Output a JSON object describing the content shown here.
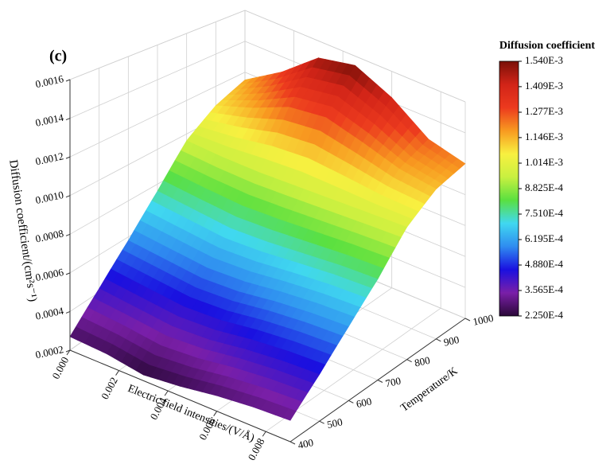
{
  "chart_data": {
    "type": "surface",
    "title": "(c)",
    "x_label": "Electric field intensities/(V/Å)",
    "y_label": "Temperature/K",
    "z_label": "Diffusion coefficient/(cm²s⁻¹)",
    "x": [
      0,
      0.0015,
      0.003,
      0.0045,
      0.006,
      0.0075,
      0.009
    ],
    "y": [
      400,
      500,
      600,
      700,
      800,
      900,
      1000
    ],
    "z": [
      [
        0.00027,
        0.00026,
        0.00023,
        0.00025,
        0.00028,
        0.0003,
        0.00031
      ],
      [
        0.00042,
        0.0004,
        0.00038,
        0.00039,
        0.00042,
        0.00044,
        0.00045
      ],
      [
        0.00058,
        0.00056,
        0.00054,
        0.00055,
        0.00058,
        0.0006,
        0.00061
      ],
      [
        0.00076,
        0.00074,
        0.00072,
        0.00073,
        0.00075,
        0.00077,
        0.00078
      ],
      [
        0.00096,
        0.00095,
        0.00095,
        0.00096,
        0.00097,
        0.00098,
        0.00099
      ],
      [
        0.00108,
        0.00116,
        0.00126,
        0.00129,
        0.00123,
        0.00116,
        0.00113
      ],
      [
        0.00115,
        0.0013,
        0.00149,
        0.00154,
        0.00143,
        0.00126,
        0.0012
      ]
    ],
    "xlim": [
      0,
      0.009
    ],
    "xticks": [
      {
        "value": 0,
        "label": "0.000"
      },
      0.002,
      0.004,
      0.006,
      0.008
    ],
    "ylim": [
      400,
      1000
    ],
    "yticks": [
      400,
      500,
      600,
      700,
      800,
      900,
      1000
    ],
    "zlim": [
      0.0002,
      0.0016
    ],
    "zticks": [
      0.0002,
      0.0004,
      0.0006,
      0.0008,
      {
        "value": 0.001,
        "label": "0.0010"
      },
      0.0012,
      0.0014,
      0.0016
    ],
    "grid": true,
    "colorbar": {
      "title": "Diffusion coefficient",
      "clim": [
        0.000225,
        0.00154
      ],
      "ticks": [
        {
          "value": 0.00154,
          "label": "1.540E-3"
        },
        {
          "value": 0.001409,
          "label": "1.409E-3"
        },
        {
          "value": 0.001277,
          "label": "1.277E-3"
        },
        {
          "value": 0.001146,
          "label": "1.146E-3"
        },
        {
          "value": 0.001014,
          "label": "1.014E-3"
        },
        {
          "value": 0.0008825,
          "label": "8.825E-4"
        },
        {
          "value": 0.000751,
          "label": "7.510E-4"
        },
        {
          "value": 0.0006195,
          "label": "6.195E-4"
        },
        {
          "value": 0.000488,
          "label": "4.880E-4"
        },
        {
          "value": 0.0003565,
          "label": "3.565E-4"
        },
        {
          "value": 0.000225,
          "label": "2.250E-4"
        }
      ],
      "colormap": [
        "#2a0838",
        "#7a1fa8",
        "#1a10e0",
        "#2f8cf0",
        "#40d8f0",
        "#5ae040",
        "#c8f040",
        "#f8f040",
        "#f89a20",
        "#ec3a1e",
        "#d22418",
        "#7a1008"
      ]
    }
  }
}
